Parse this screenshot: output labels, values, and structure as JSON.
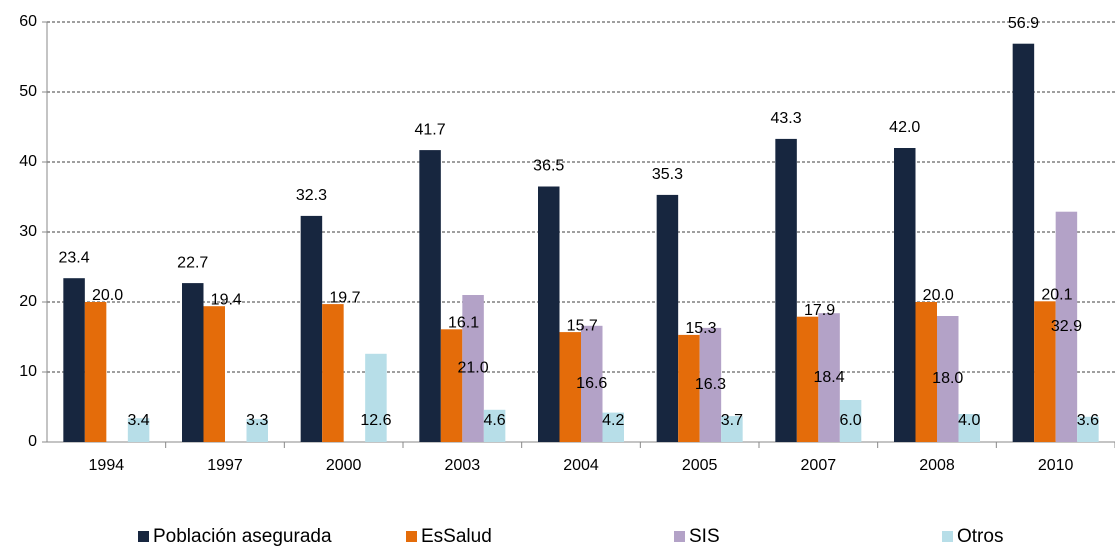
{
  "chart_data": {
    "type": "bar",
    "categories": [
      "1994",
      "1997",
      "2000",
      "2003",
      "2004",
      "2005",
      "2007",
      "2008",
      "2010"
    ],
    "series": [
      {
        "name": "Población asegurada",
        "color": "#17263f",
        "values": [
          23.4,
          22.7,
          32.3,
          41.7,
          36.5,
          35.3,
          43.3,
          42.0,
          56.9
        ],
        "value_labels": [
          "23.4",
          "22.7",
          "32.3",
          "41.7",
          "36.5",
          "35.3",
          "43.3",
          "42.0",
          "56.9"
        ]
      },
      {
        "name": "EsSalud",
        "color": "#e46c0a",
        "values": [
          20.0,
          19.4,
          19.7,
          16.1,
          15.7,
          15.3,
          17.9,
          20.0,
          20.1
        ],
        "value_labels": [
          "20.0",
          "19.4",
          "19.7",
          "16.1",
          "15.7",
          "15.3",
          "17.9",
          "20.0",
          "20.1"
        ]
      },
      {
        "name": "SIS",
        "color": "#b3a2c7",
        "values": [
          null,
          null,
          null,
          21.0,
          16.6,
          16.3,
          18.4,
          18.0,
          32.9
        ],
        "value_labels": [
          null,
          null,
          null,
          "21.0",
          "16.6",
          "16.3",
          "18.4",
          "18.0",
          "32.9"
        ]
      },
      {
        "name": "Otros",
        "color": "#b7dee8",
        "values": [
          3.4,
          3.3,
          12.6,
          4.6,
          4.2,
          3.7,
          6.0,
          4.0,
          3.6
        ],
        "value_labels": [
          "3.4",
          "3.3",
          "12.6",
          "4.6",
          "4.2",
          "3.7",
          "6.0",
          "4.0",
          "3.6"
        ]
      }
    ],
    "ylim": [
      0,
      60
    ],
    "yticks": [
      0,
      10,
      20,
      30,
      40,
      50,
      60
    ],
    "grid": true,
    "legend": "bottom"
  }
}
